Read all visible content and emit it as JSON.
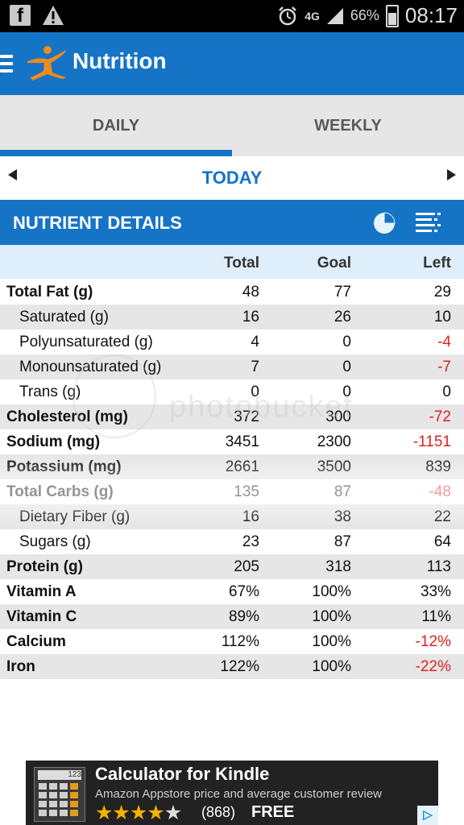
{
  "status_bar": {
    "network": "4G",
    "battery": "66%",
    "time": "08:17"
  },
  "app_bar": {
    "title": "Nutrition"
  },
  "tabs": [
    {
      "label": "DAILY",
      "active": true
    },
    {
      "label": "WEEKLY",
      "active": false
    }
  ],
  "date_nav": {
    "label": "TODAY"
  },
  "section": {
    "title": "NUTRIENT DETAILS"
  },
  "columns": {
    "total": "Total",
    "goal": "Goal",
    "left": "Left"
  },
  "rows": [
    {
      "name": "Total Fat (g)",
      "total": "48",
      "goal": "77",
      "left": "29",
      "bold": true,
      "negative": false
    },
    {
      "name": "Saturated (g)",
      "total": "16",
      "goal": "26",
      "left": "10",
      "bold": false,
      "negative": false
    },
    {
      "name": "Polyunsaturated (g)",
      "total": "4",
      "goal": "0",
      "left": "-4",
      "bold": false,
      "negative": true
    },
    {
      "name": "Monounsaturated (g)",
      "total": "7",
      "goal": "0",
      "left": "-7",
      "bold": false,
      "negative": true
    },
    {
      "name": "Trans (g)",
      "total": "0",
      "goal": "0",
      "left": "0",
      "bold": false,
      "negative": false
    },
    {
      "name": "Cholesterol (mg)",
      "total": "372",
      "goal": "300",
      "left": "-72",
      "bold": true,
      "negative": true
    },
    {
      "name": "Sodium (mg)",
      "total": "3451",
      "goal": "2300",
      "left": "-1151",
      "bold": true,
      "negative": true
    },
    {
      "name": "Potassium (mg)",
      "total": "2661",
      "goal": "3500",
      "left": "839",
      "bold": true,
      "negative": false
    },
    {
      "name": "Total Carbs (g)",
      "total": "135",
      "goal": "87",
      "left": "-48",
      "bold": true,
      "negative": true
    },
    {
      "name": "Dietary Fiber (g)",
      "total": "16",
      "goal": "38",
      "left": "22",
      "bold": false,
      "negative": false
    },
    {
      "name": "Sugars (g)",
      "total": "23",
      "goal": "87",
      "left": "64",
      "bold": false,
      "negative": false
    },
    {
      "name": "Protein (g)",
      "total": "205",
      "goal": "318",
      "left": "113",
      "bold": true,
      "negative": false
    },
    {
      "name": "Vitamin A",
      "total": "67%",
      "goal": "100%",
      "left": "33%",
      "bold": true,
      "negative": false
    },
    {
      "name": "Vitamin C",
      "total": "89%",
      "goal": "100%",
      "left": "11%",
      "bold": true,
      "negative": false
    },
    {
      "name": "Calcium",
      "total": "112%",
      "goal": "100%",
      "left": "-12%",
      "bold": true,
      "negative": true
    },
    {
      "name": "Iron",
      "total": "122%",
      "goal": "100%",
      "left": "-22%",
      "bold": true,
      "negative": true
    }
  ],
  "ad": {
    "icon_display": "123",
    "title": "Calculator for Kindle",
    "subtitle": "Amazon Appstore price and average customer review",
    "rating_stars": 4,
    "rating_count": "(868)",
    "price": "FREE"
  },
  "watermark": {
    "text": "photobucket"
  },
  "colors": {
    "primary": "#1574c6",
    "negative": "#e02020",
    "row_shade": "#e6e6e6",
    "column_header": "#deeefa"
  }
}
